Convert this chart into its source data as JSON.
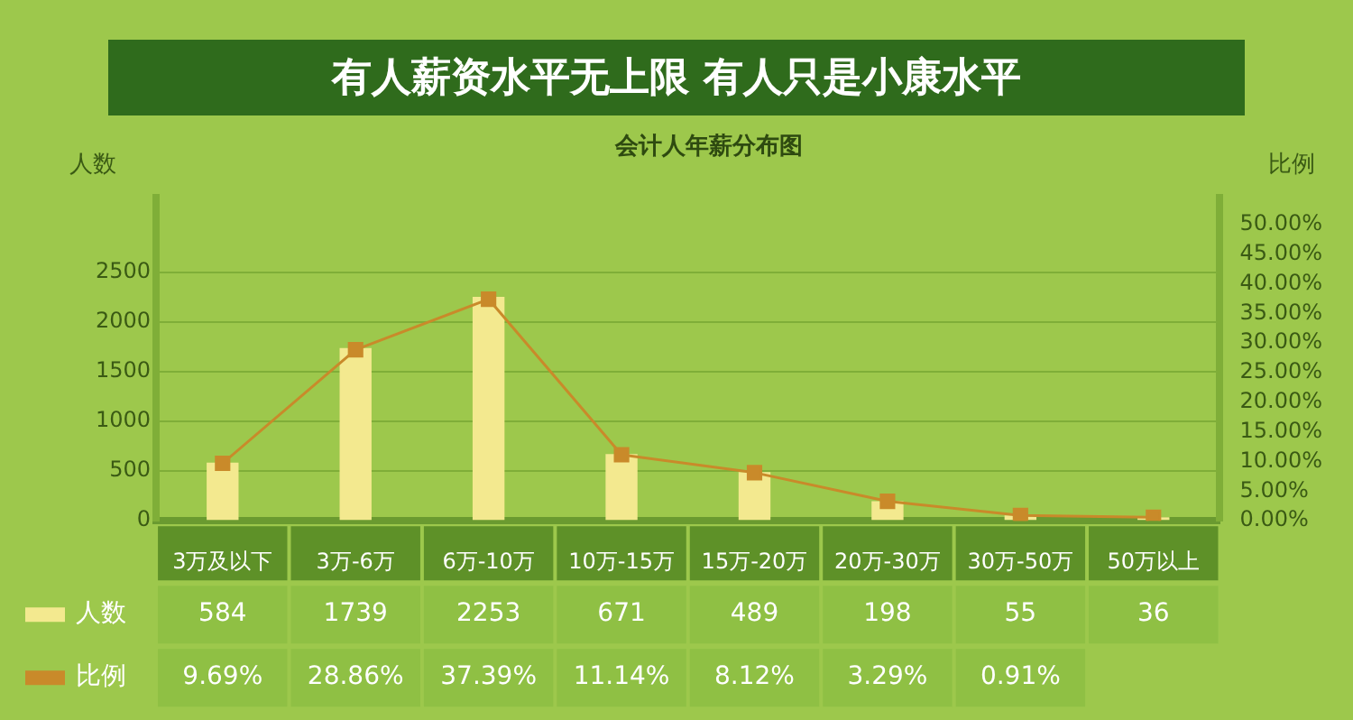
{
  "chart_data": {
    "type": "bar",
    "title": "有人薪资水平无上限 有人只是小康水平",
    "subtitle": "会计人年薪分布图",
    "ylabel": "人数",
    "y2label": "比例",
    "categories": [
      "3万及以下",
      "3万-6万",
      "6万-10万",
      "10万-15万",
      "15万-20万",
      "20万-30万",
      "30万-50万",
      "50万以上"
    ],
    "series": [
      {
        "name": "人数",
        "color": "#f3e98f",
        "values": [
          584,
          1739,
          2253,
          671,
          489,
          198,
          55,
          36
        ],
        "value_labels": [
          "584",
          "1739",
          "2253",
          "671",
          "489",
          "198",
          "55",
          "36"
        ]
      },
      {
        "name": "比例",
        "type": "line",
        "axis": "y2",
        "color": "#c98a2a",
        "values": [
          9.69,
          28.86,
          37.39,
          11.14,
          8.12,
          3.29,
          0.91,
          0.6
        ],
        "value_labels": [
          "9.69%",
          "28.86%",
          "37.39%",
          "11.14%",
          "8.12%",
          "3.29%",
          "0.91%",
          null
        ]
      }
    ],
    "ylim": [
      0,
      3250
    ],
    "yticks": [
      0,
      500,
      1000,
      1500,
      2000,
      2500
    ],
    "y2lim": [
      0,
      54.5
    ],
    "y2ticks": [
      {
        "value": 0,
        "label": "0.00%"
      },
      {
        "value": 5,
        "label": "5.00%"
      },
      {
        "value": 10,
        "label": "10.00%"
      },
      {
        "value": 15,
        "label": "15.00%"
      },
      {
        "value": 20,
        "label": "20.00%"
      },
      {
        "value": 25,
        "label": "25.00%"
      },
      {
        "value": 30,
        "label": "30.00%"
      },
      {
        "value": 35,
        "label": "35.00%"
      },
      {
        "value": 40,
        "label": "40.00%"
      },
      {
        "value": 45,
        "label": "45.00%"
      },
      {
        "value": 50,
        "label": "50.00%"
      }
    ],
    "grid": "y",
    "legend": "bottom",
    "marker": "square",
    "line_style": "solid"
  }
}
